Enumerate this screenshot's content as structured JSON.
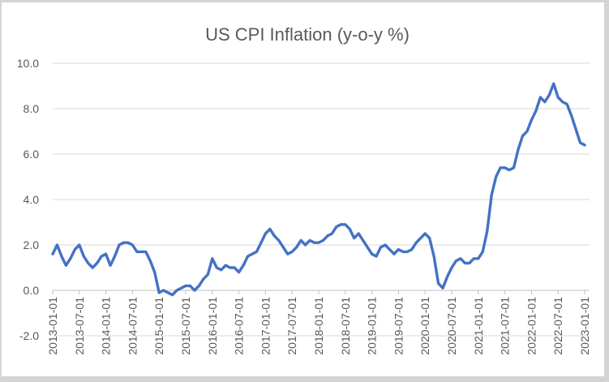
{
  "chart": {
    "title": "US CPI Inflation (y-o-y %)"
  },
  "chart_data": {
    "type": "line",
    "title": "US CPI Inflation (y-o-y %)",
    "xlabel": "",
    "ylabel": "",
    "x": [
      "2013-01-01",
      "2013-02-01",
      "2013-03-01",
      "2013-04-01",
      "2013-05-01",
      "2013-06-01",
      "2013-07-01",
      "2013-08-01",
      "2013-09-01",
      "2013-10-01",
      "2013-11-01",
      "2013-12-01",
      "2014-01-01",
      "2014-02-01",
      "2014-03-01",
      "2014-04-01",
      "2014-05-01",
      "2014-06-01",
      "2014-07-01",
      "2014-08-01",
      "2014-09-01",
      "2014-10-01",
      "2014-11-01",
      "2014-12-01",
      "2015-01-01",
      "2015-02-01",
      "2015-03-01",
      "2015-04-01",
      "2015-05-01",
      "2015-06-01",
      "2015-07-01",
      "2015-08-01",
      "2015-09-01",
      "2015-10-01",
      "2015-11-01",
      "2015-12-01",
      "2016-01-01",
      "2016-02-01",
      "2016-03-01",
      "2016-04-01",
      "2016-05-01",
      "2016-06-01",
      "2016-07-01",
      "2016-08-01",
      "2016-09-01",
      "2016-10-01",
      "2016-11-01",
      "2016-12-01",
      "2017-01-01",
      "2017-02-01",
      "2017-03-01",
      "2017-04-01",
      "2017-05-01",
      "2017-06-01",
      "2017-07-01",
      "2017-08-01",
      "2017-09-01",
      "2017-10-01",
      "2017-11-01",
      "2017-12-01",
      "2018-01-01",
      "2018-02-01",
      "2018-03-01",
      "2018-04-01",
      "2018-05-01",
      "2018-06-01",
      "2018-07-01",
      "2018-08-01",
      "2018-09-01",
      "2018-10-01",
      "2018-11-01",
      "2018-12-01",
      "2019-01-01",
      "2019-02-01",
      "2019-03-01",
      "2019-04-01",
      "2019-05-01",
      "2019-06-01",
      "2019-07-01",
      "2019-08-01",
      "2019-09-01",
      "2019-10-01",
      "2019-11-01",
      "2019-12-01",
      "2020-01-01",
      "2020-02-01",
      "2020-03-01",
      "2020-04-01",
      "2020-05-01",
      "2020-06-01",
      "2020-07-01",
      "2020-08-01",
      "2020-09-01",
      "2020-10-01",
      "2020-11-01",
      "2020-12-01",
      "2021-01-01",
      "2021-02-01",
      "2021-03-01",
      "2021-04-01",
      "2021-05-01",
      "2021-06-01",
      "2021-07-01",
      "2021-08-01",
      "2021-09-01",
      "2021-10-01",
      "2021-11-01",
      "2021-12-01",
      "2022-01-01",
      "2022-02-01",
      "2022-03-01",
      "2022-04-01",
      "2022-05-01",
      "2022-06-01",
      "2022-07-01",
      "2022-08-01",
      "2022-09-01",
      "2022-10-01",
      "2022-11-01",
      "2022-12-01",
      "2023-01-01"
    ],
    "values": [
      1.6,
      2.0,
      1.5,
      1.1,
      1.4,
      1.8,
      2.0,
      1.5,
      1.2,
      1.0,
      1.2,
      1.5,
      1.6,
      1.1,
      1.5,
      2.0,
      2.1,
      2.1,
      2.0,
      1.7,
      1.7,
      1.7,
      1.3,
      0.8,
      -0.1,
      0.0,
      -0.1,
      -0.2,
      0.0,
      0.1,
      0.2,
      0.2,
      0.0,
      0.2,
      0.5,
      0.7,
      1.4,
      1.0,
      0.9,
      1.1,
      1.0,
      1.0,
      0.8,
      1.1,
      1.5,
      1.6,
      1.7,
      2.1,
      2.5,
      2.7,
      2.4,
      2.2,
      1.9,
      1.6,
      1.7,
      1.9,
      2.2,
      2.0,
      2.2,
      2.1,
      2.1,
      2.2,
      2.4,
      2.5,
      2.8,
      2.9,
      2.9,
      2.7,
      2.3,
      2.5,
      2.2,
      1.9,
      1.6,
      1.5,
      1.9,
      2.0,
      1.8,
      1.6,
      1.8,
      1.7,
      1.7,
      1.8,
      2.1,
      2.3,
      2.5,
      2.3,
      1.5,
      0.3,
      0.1,
      0.6,
      1.0,
      1.3,
      1.4,
      1.2,
      1.2,
      1.4,
      1.4,
      1.7,
      2.6,
      4.2,
      5.0,
      5.4,
      5.4,
      5.3,
      5.4,
      6.2,
      6.8,
      7.0,
      7.5,
      7.9,
      8.5,
      8.3,
      8.6,
      9.1,
      8.5,
      8.3,
      8.2,
      7.7,
      7.1,
      6.5,
      6.4
    ],
    "x_tick_step": 6,
    "ytick_values": [
      -2,
      0,
      2,
      4,
      6,
      8,
      10
    ],
    "ytick_labels": [
      "-2.0",
      "0.0",
      "2.0",
      "4.0",
      "6.0",
      "8.0",
      "10.0"
    ],
    "ylim": [
      -2,
      10
    ],
    "grid": "horizontal",
    "legend": "none",
    "colors": {
      "line": "#4472C4",
      "gridline": "#D9D9D9",
      "axis": "#BFBFBF",
      "text": "#595959",
      "canvas": "#FFFFFF",
      "border_band": "#D4D4D4"
    }
  }
}
